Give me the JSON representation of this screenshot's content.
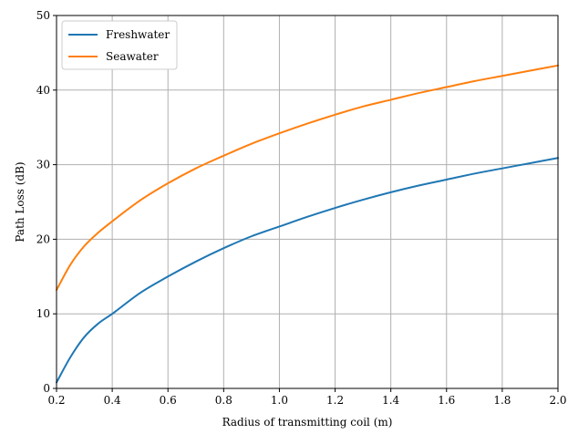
{
  "chart_data": {
    "type": "line",
    "title": "",
    "xlabel": "Radius of transmitting coil (m)",
    "ylabel": "Path Loss (dB)",
    "xlim": [
      0.2,
      2.0
    ],
    "ylim": [
      0,
      50
    ],
    "xticks": [
      "0.2",
      "0.4",
      "0.6",
      "0.8",
      "1.0",
      "1.2",
      "1.4",
      "1.6",
      "1.8",
      "2.0"
    ],
    "yticks": [
      "0",
      "10",
      "20",
      "30",
      "40",
      "50"
    ],
    "grid": true,
    "legend_position": "top-left",
    "x": [
      0.2,
      0.25,
      0.3,
      0.35,
      0.4,
      0.5,
      0.6,
      0.7,
      0.8,
      0.9,
      1.0,
      1.1,
      1.2,
      1.3,
      1.4,
      1.5,
      1.6,
      1.7,
      1.8,
      1.9,
      2.0
    ],
    "series": [
      {
        "name": "Freshwater",
        "color": "#1f77b4",
        "values": [
          0.8,
          4.2,
          6.9,
          8.7,
          10.0,
          12.8,
          15.0,
          17.0,
          18.8,
          20.4,
          21.7,
          23.0,
          24.2,
          25.3,
          26.3,
          27.2,
          28.0,
          28.8,
          29.5,
          30.2,
          30.9
        ]
      },
      {
        "name": "Seawater",
        "color": "#ff7f0e",
        "values": [
          13.2,
          16.6,
          19.1,
          20.9,
          22.4,
          25.2,
          27.5,
          29.5,
          31.2,
          32.8,
          34.2,
          35.5,
          36.7,
          37.8,
          38.7,
          39.6,
          40.4,
          41.2,
          41.9,
          42.6,
          43.3
        ]
      }
    ]
  }
}
